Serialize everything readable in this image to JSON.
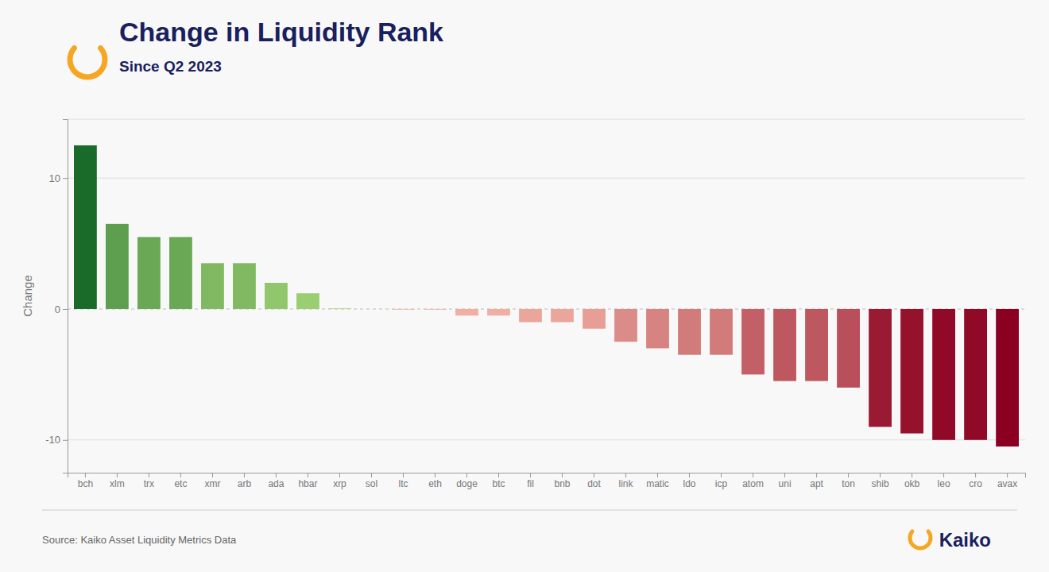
{
  "chart_data": {
    "type": "bar",
    "title": "Change in Liquidity Rank",
    "subtitle": "Since Q2 2023",
    "ylabel": "Change",
    "source": "Source: Kaiko Asset Liquidity Metrics Data",
    "annotations": [
      "Kaiko"
    ],
    "categories": [
      "bch",
      "xlm",
      "trx",
      "etc",
      "xmr",
      "arb",
      "ada",
      "hbar",
      "xrp",
      "sol",
      "ltc",
      "eth",
      "doge",
      "btc",
      "fil",
      "bnb",
      "dot",
      "link",
      "matic",
      "ldo",
      "icp",
      "atom",
      "uni",
      "apt",
      "ton",
      "shib",
      "okb",
      "leo",
      "cro",
      "avax"
    ],
    "values": [
      12.5,
      6.5,
      5.5,
      5.5,
      3.5,
      3.5,
      2.0,
      1.2,
      0.05,
      0.0,
      -0.05,
      -0.05,
      -0.5,
      -0.5,
      -1.0,
      -1.0,
      -1.5,
      -2.5,
      -3.0,
      -3.5,
      -3.5,
      -5.0,
      -5.5,
      -5.5,
      -6.0,
      -9.0,
      -9.5,
      -10.0,
      -10.0,
      -10.5
    ],
    "colors": [
      "#1a6b2a",
      "#5e9f4f",
      "#6aa856",
      "#6aa856",
      "#80b962",
      "#80b962",
      "#91c76c",
      "#9ace71",
      "#a7d878",
      "#cccccc",
      "#f4b7a7",
      "#f4b7a7",
      "#f0afa2",
      "#f0afa2",
      "#eba69b",
      "#eba69b",
      "#e69e95",
      "#dc8c88",
      "#d78381",
      "#d27b7b",
      "#d27b7b",
      "#c36067",
      "#bd5861",
      "#bd5861",
      "#b84f5a",
      "#9a1a33",
      "#95122d",
      "#900926",
      "#900926",
      "#8b0020"
    ],
    "ylim": [
      -12.5,
      14.5
    ],
    "yticks": [
      -10,
      0,
      10
    ],
    "grid": true
  }
}
